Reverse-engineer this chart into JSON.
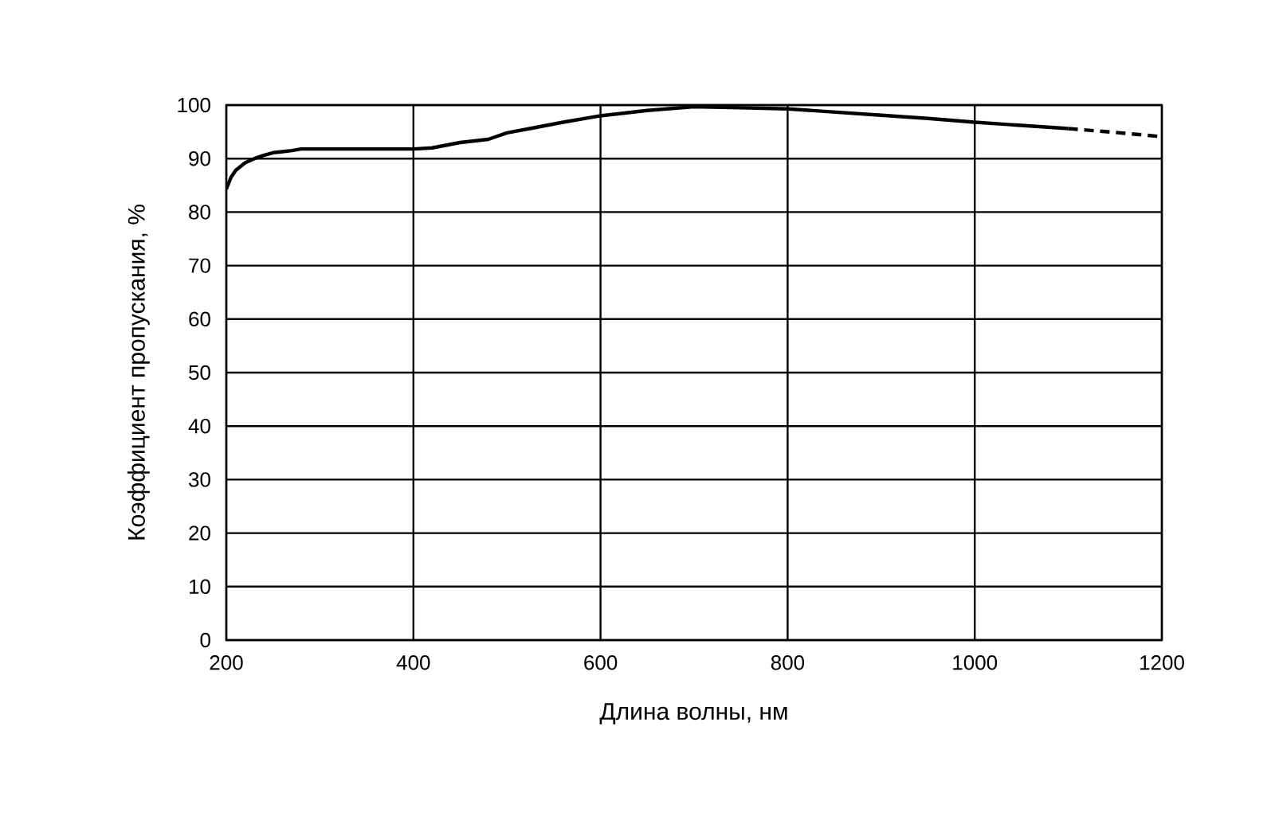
{
  "chart_data": {
    "type": "line",
    "xlabel": "Длина волны, нм",
    "ylabel": "Коэффициент пропускания, %",
    "series": [
      {
        "color": "#000000",
        "line_style": "solid",
        "x": [
          200,
          205,
          210,
          220,
          230,
          240,
          250,
          260,
          270,
          280,
          300,
          350,
          400,
          420,
          450,
          480,
          500,
          530,
          560,
          600,
          650,
          700,
          750,
          800,
          850,
          900,
          950,
          1000,
          1050,
          1100
        ],
        "values": [
          84.3,
          86.5,
          87.8,
          89.2,
          90.0,
          90.6,
          91.1,
          91.3,
          91.5,
          91.8,
          91.8,
          91.8,
          91.8,
          92.0,
          93.0,
          93.6,
          94.8,
          95.8,
          96.8,
          98.0,
          99.0,
          99.7,
          99.5,
          99.3,
          98.7,
          98.1,
          97.5,
          96.8,
          96.2,
          95.6
        ]
      },
      {
        "color": "#000000",
        "line_style": "dashed",
        "x": [
          1100,
          1150,
          1200
        ],
        "values": [
          95.6,
          94.9,
          94.1
        ]
      }
    ],
    "xlim": [
      200,
      1200
    ],
    "ylim": [
      0,
      100
    ],
    "xticks": [
      200,
      400,
      600,
      800,
      1000,
      1200
    ],
    "yticks": [
      0,
      10,
      20,
      30,
      40,
      50,
      60,
      70,
      80,
      90,
      100
    ],
    "grid": true,
    "marker": "none"
  }
}
